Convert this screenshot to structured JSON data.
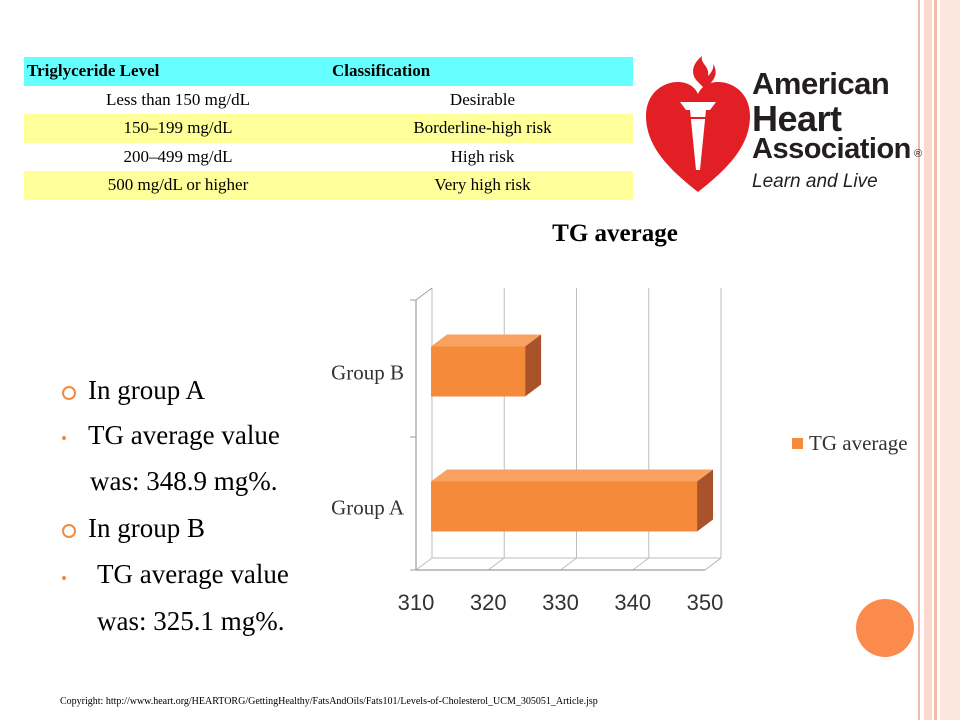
{
  "table": {
    "headers": [
      "Triglyceride Level",
      "Classification"
    ],
    "rows": [
      [
        "Less than 150 mg/dL",
        "Desirable"
      ],
      [
        "150–199 mg/dL",
        "Borderline-high risk"
      ],
      [
        "200–499 mg/dL",
        "High risk"
      ],
      [
        "500 mg/dL or higher",
        "Very high risk"
      ]
    ]
  },
  "logo": {
    "line1": "American",
    "line2": "Heart",
    "line3": "Association",
    "reg": "®",
    "tagline": "Learn and Live"
  },
  "bullets": [
    {
      "text": "In group A",
      "level": 1
    },
    {
      "text": "TG average value",
      "level": 2
    },
    {
      "text": "was: 348.9 mg%.",
      "level": 3
    },
    {
      "text": "In group B",
      "level": 1
    },
    {
      "text": "TG average value",
      "level": 2
    },
    {
      "text": "was: 325.1 mg%.",
      "level": 3
    }
  ],
  "copyright": "Copyright: http://www.heart.org/HEARTORG/GettingHealthy/FatsAndOils/Fats101/Levels-of-Cholesterol_UCM_305051_Article.jsp",
  "chart_data": {
    "type": "bar",
    "orientation": "horizontal",
    "title": "TG average",
    "categories": [
      "Group A",
      "Group B"
    ],
    "series": [
      {
        "name": "TG average",
        "values": [
          348.9,
          325.1
        ]
      }
    ],
    "xlim": [
      310,
      350
    ],
    "xticks": [
      310,
      320,
      330,
      340,
      350
    ],
    "legend": "right",
    "grid": true,
    "bar_color": "#f58a3a"
  }
}
